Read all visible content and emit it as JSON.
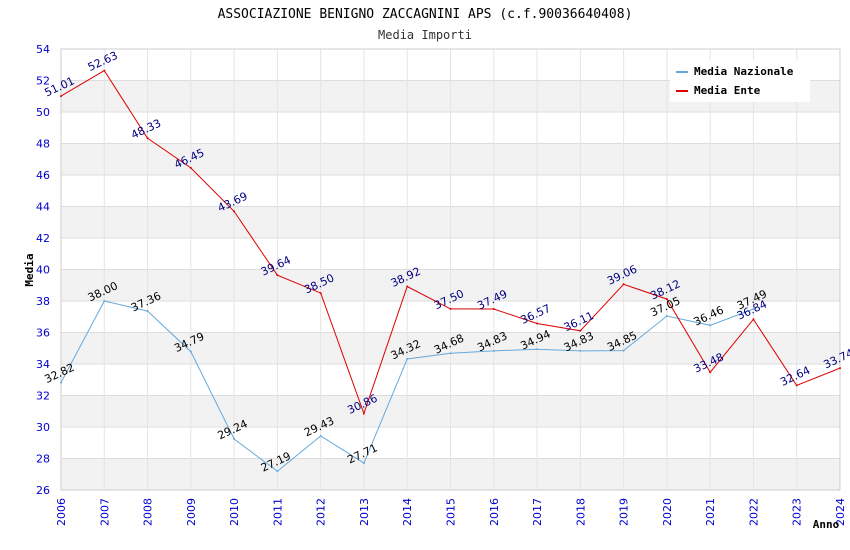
{
  "chart_data": {
    "type": "line",
    "title": "ASSOCIAZIONE BENIGNO ZACCAGNINI APS (c.f.90036640408)",
    "subtitle": "Media Importi",
    "xlabel": "Anno",
    "ylabel": "Media",
    "ylim": [
      26,
      54
    ],
    "yticks": [
      "26",
      "28",
      "30",
      "32",
      "34",
      "36",
      "38",
      "40",
      "42",
      "44",
      "46",
      "48",
      "50",
      "52",
      "54"
    ],
    "x": [
      "2006",
      "2007",
      "2008",
      "2009",
      "2010",
      "2011",
      "2012",
      "2013",
      "2014",
      "2015",
      "2016",
      "2017",
      "2018",
      "2019",
      "2020",
      "2021",
      "2022",
      "2023",
      "2024"
    ],
    "grid": true,
    "legend_position": "top-right",
    "series": [
      {
        "name": "Media Nazionale",
        "color": "#66aadd",
        "label_color": "#000000",
        "values": [
          32.82,
          38.0,
          37.36,
          34.79,
          29.24,
          27.19,
          29.43,
          27.71,
          34.32,
          34.68,
          34.83,
          34.94,
          34.83,
          34.85,
          37.05,
          36.46,
          37.49,
          null,
          null
        ],
        "labels": [
          "32.82",
          "38.00",
          "37.36",
          "34.79",
          "29.24",
          "27.19",
          "29.43",
          "27.71",
          "34.32",
          "34.68",
          "34.83",
          "34.94",
          "34.83",
          "34.85",
          "37.05",
          "36.46",
          "37.49",
          null,
          null
        ]
      },
      {
        "name": "Media Ente",
        "color": "#dd0000",
        "label_color": "#000080",
        "values": [
          51.01,
          52.63,
          48.33,
          46.45,
          43.69,
          39.64,
          38.5,
          30.86,
          38.92,
          37.5,
          37.49,
          36.57,
          36.11,
          39.06,
          38.12,
          33.48,
          36.84,
          32.64,
          33.74
        ],
        "labels": [
          "51.01",
          "52.63",
          "48.33",
          "46.45",
          "43.69",
          "39.64",
          "38.50",
          "30.86",
          "38.92",
          "37.50",
          "37.49",
          "36.57",
          "36.11",
          "39.06",
          "38.12",
          "33.48",
          "36.84",
          "32.64",
          "33.74"
        ]
      }
    ]
  }
}
